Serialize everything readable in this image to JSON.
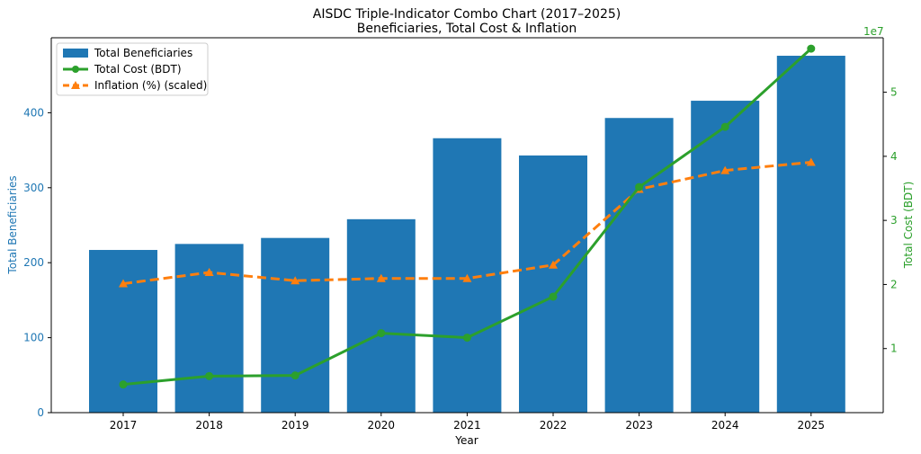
{
  "chart_data": {
    "type": "bar",
    "title": "AISDC Triple-Indicator Combo Chart (2017–2025)",
    "subtitle": "Beneficiaries, Total Cost & Inflation",
    "xlabel": "Year",
    "ylabel_left": "Total Beneficiaries",
    "ylabel_right": "Total Cost (BDT)",
    "right_axis_multiplier": "1e7",
    "categories": [
      "2017",
      "2018",
      "2019",
      "2020",
      "2021",
      "2022",
      "2023",
      "2024",
      "2025"
    ],
    "ylim_left": [
      0,
      500
    ],
    "yticks_left": [
      0,
      100,
      200,
      300,
      400
    ],
    "ylim_right": [
      0,
      58500000
    ],
    "yticks_right": [
      1,
      2,
      3,
      4,
      5
    ],
    "series": [
      {
        "name": "Total Beneficiaries",
        "type": "bar",
        "axis": "left",
        "color": "#1f77b4",
        "values": [
          217,
          225,
          233,
          258,
          366,
          343,
          393,
          416,
          476
        ]
      },
      {
        "name": "Total Cost (BDT)",
        "type": "line",
        "axis": "right",
        "color": "#2ca02c",
        "marker": "circle",
        "values": [
          4400000,
          5700000,
          5800000,
          12400000,
          11700000,
          18100000,
          35200000,
          44600000,
          56800000
        ]
      },
      {
        "name": "Inflation (%) (scaled)",
        "type": "line",
        "axis": "left",
        "color": "#ff7f0e",
        "marker": "triangle",
        "dashed": true,
        "values": [
          172,
          187,
          176,
          179,
          179,
          197,
          298,
          323,
          334
        ]
      }
    ],
    "legend_position": "top-left",
    "grid": false
  }
}
